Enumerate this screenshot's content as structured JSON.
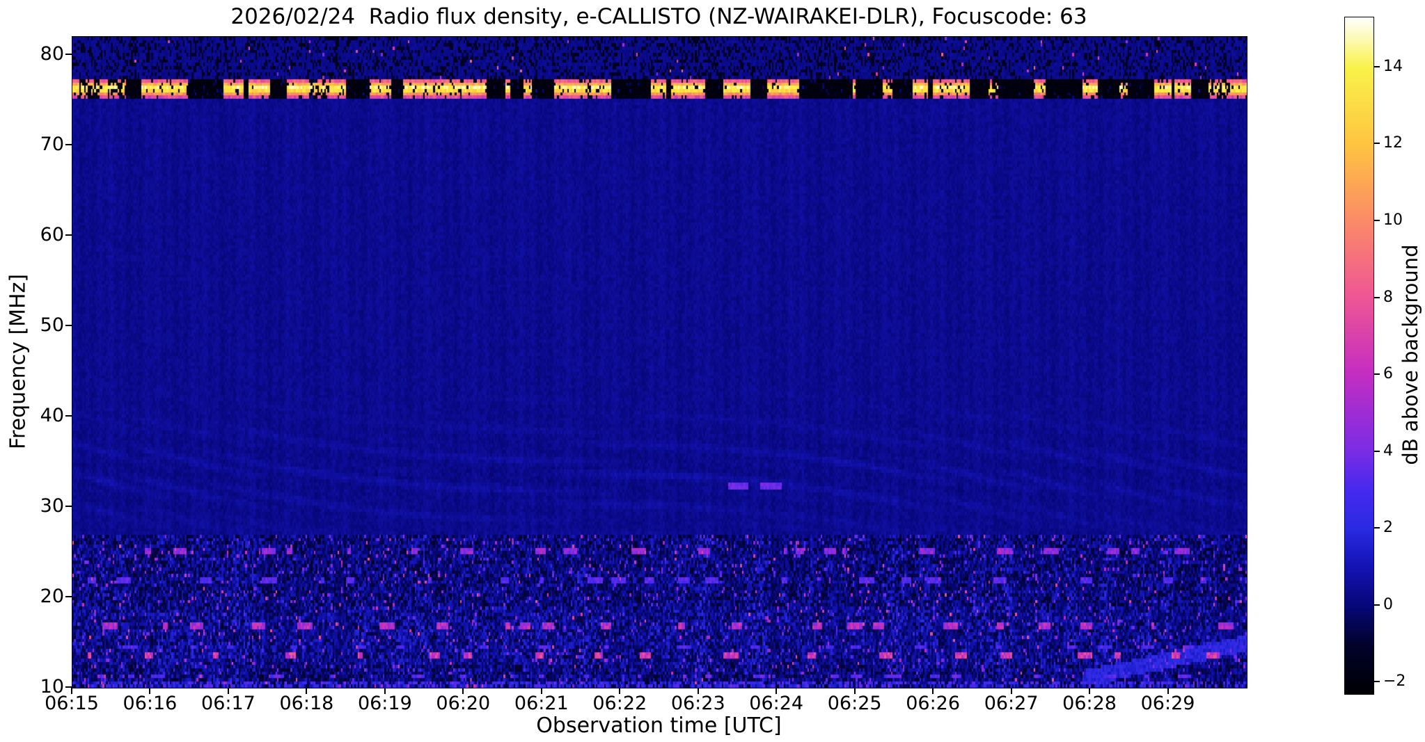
{
  "title": "2026/02/24  Radio flux density, e-CALLISTO (NZ-WAIRAKEI-DLR), Focuscode: 63",
  "chart_data": {
    "type": "heatmap",
    "title": "2026/02/24  Radio flux density, e-CALLISTO (NZ-WAIRAKEI-DLR), Focuscode: 63",
    "xlabel": "Observation time [UTC]",
    "ylabel": "Frequency [MHz]",
    "x_tick_labels": [
      "06:15",
      "06:16",
      "06:17",
      "06:18",
      "06:19",
      "06:20",
      "06:21",
      "06:22",
      "06:23",
      "06:24",
      "06:25",
      "06:26",
      "06:27",
      "06:28",
      "06:29"
    ],
    "x_range_minutes": [
      0,
      15
    ],
    "y_ticks": [
      10,
      20,
      30,
      40,
      50,
      60,
      70,
      80
    ],
    "y_range": [
      10,
      82
    ],
    "grid": false,
    "legend": "colorbar-right",
    "background_level_db": 0.35,
    "colorbar": {
      "label": "dB above background",
      "ticks": [
        -2,
        0,
        2,
        4,
        6,
        8,
        10,
        12,
        14
      ],
      "range": [
        -2.3,
        15.3
      ],
      "colormap_stops": [
        [
          0.0,
          "#000002"
        ],
        [
          0.074,
          "#02022e"
        ],
        [
          0.131,
          "#07077a"
        ],
        [
          0.188,
          "#1313b4"
        ],
        [
          0.244,
          "#2a2ae2"
        ],
        [
          0.301,
          "#4629ee"
        ],
        [
          0.358,
          "#7a2ce6"
        ],
        [
          0.472,
          "#c32dc2"
        ],
        [
          0.585,
          "#ee5596"
        ],
        [
          0.699,
          "#fb8a68"
        ],
        [
          0.813,
          "#fec440"
        ],
        [
          0.926,
          "#faf24a"
        ],
        [
          1.0,
          "#ffffff"
        ]
      ]
    },
    "features": [
      {
        "name": "rfi-band",
        "freq_mhz": [
          75.2,
          77.4
        ],
        "value_db": [
          -2,
          15
        ],
        "description": "Strong intermittent broadcast RFI band: alternating saturated white/yellow segments (up to ~15 dB) and blanked black segments across the whole time span"
      },
      {
        "name": "top-strip-dropouts",
        "freq_mhz": [
          77.4,
          82
        ],
        "value_db": [
          -2,
          5
        ],
        "description": "Dark blue strip with scattered black dropout patches and sparse bright pixels"
      },
      {
        "name": "quiet-background",
        "freq_mhz": [
          27,
          75.2
        ],
        "value_db": [
          0,
          1
        ],
        "description": "Uniform dark blue background near 0 dB with faint texture"
      },
      {
        "name": "wavy-interference",
        "freq_mhz": [
          27,
          44
        ],
        "value_db": [
          0,
          1.5
        ],
        "description": "Faint wavy moiré ripple arcs in slightly lighter blue across the full time range, strongest 30-40 MHz"
      },
      {
        "name": "short-bursts-32mhz",
        "freq_mhz": [
          31.8,
          32.6
        ],
        "time_utc": [
          "06:23:30",
          "06:24:10"
        ],
        "value_db": [
          3,
          4.5
        ],
        "description": "Two short bright light-blue horizontal dashes near 32 MHz around 06:23:30-06:24"
      },
      {
        "name": "ionospheric-noise-band",
        "freq_mhz": [
          10,
          27
        ],
        "value_db": [
          -2,
          8
        ],
        "description": "Dark mottled band: black/dark-blue speckle with dense blue noise, sparse magenta and orange bursts, bright dashed horizontal streaks near 11.4, 13.6, 17, 22 and 25 MHz"
      },
      {
        "name": "drifting-feature",
        "freq_mhz": [
          11,
          15
        ],
        "time_utc": [
          "06:28",
          "06:30"
        ],
        "value_db": [
          1,
          3
        ],
        "description": "Faint rising blue diagonal feature at lower right"
      }
    ],
    "render_seed": 20260224
  }
}
